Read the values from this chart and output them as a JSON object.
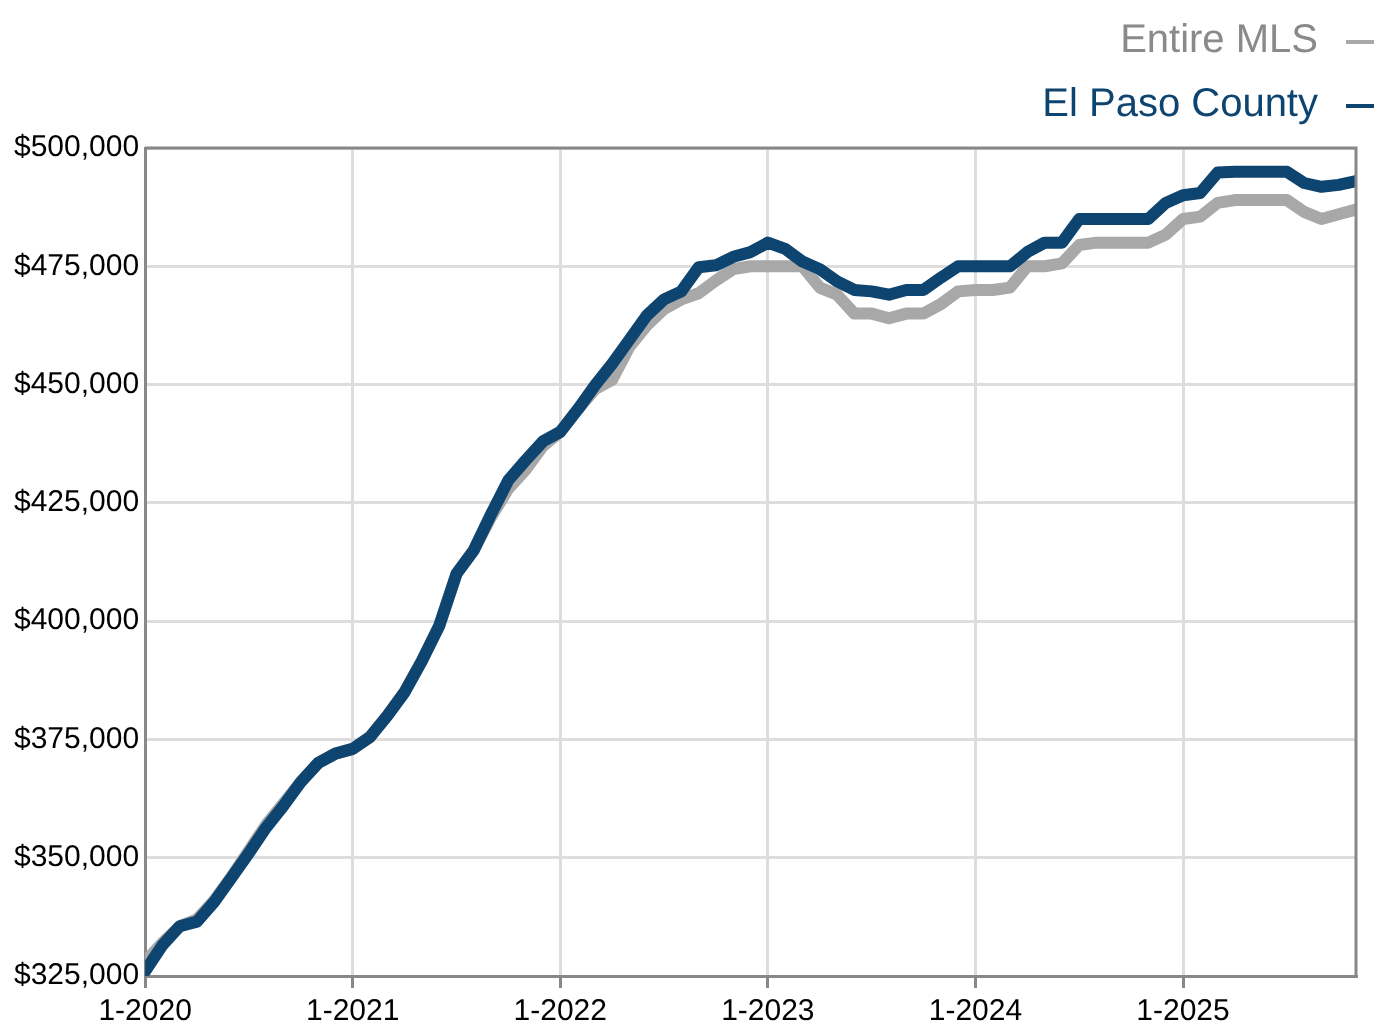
{
  "chart_data": {
    "type": "line",
    "x": [
      "2020-01",
      "2020-02",
      "2020-03",
      "2020-04",
      "2020-05",
      "2020-06",
      "2020-07",
      "2020-08",
      "2020-09",
      "2020-10",
      "2020-11",
      "2020-12",
      "2021-01",
      "2021-02",
      "2021-03",
      "2021-04",
      "2021-05",
      "2021-06",
      "2021-07",
      "2021-08",
      "2021-09",
      "2021-10",
      "2021-11",
      "2021-12",
      "2022-01",
      "2022-02",
      "2022-03",
      "2022-04",
      "2022-05",
      "2022-06",
      "2022-07",
      "2022-08",
      "2022-09",
      "2022-10",
      "2022-11",
      "2022-12",
      "2023-01",
      "2023-02",
      "2023-03",
      "2023-04",
      "2023-05",
      "2023-06",
      "2023-07",
      "2023-08",
      "2023-09",
      "2023-10",
      "2023-11",
      "2023-12",
      "2024-01",
      "2024-02",
      "2024-03",
      "2024-04",
      "2024-05",
      "2024-06",
      "2024-07",
      "2024-08",
      "2024-09",
      "2024-10",
      "2024-11",
      "2024-12",
      "2025-01",
      "2025-02",
      "2025-03",
      "2025-04",
      "2025-05",
      "2025-06",
      "2025-07",
      "2025-08",
      "2025-09",
      "2025-10",
      "2025-11"
    ],
    "series": [
      {
        "name": "Entire MLS",
        "color": "#a8a8a8",
        "values": [
          328000,
          332000,
          335500,
          337000,
          341000,
          346000,
          351500,
          357000,
          361500,
          366000,
          370000,
          372000,
          373000,
          375500,
          380000,
          385000,
          391600,
          399000,
          410000,
          415000,
          422000,
          428000,
          432000,
          437000,
          440000,
          444700,
          449000,
          451000,
          458000,
          462500,
          466000,
          468000,
          469300,
          472000,
          474400,
          475000,
          475000,
          475000,
          475000,
          470500,
          469000,
          465000,
          465000,
          464000,
          465000,
          465000,
          467000,
          469700,
          470000,
          470000,
          470500,
          475000,
          475000,
          475600,
          479500,
          480000,
          480000,
          480000,
          480000,
          481700,
          485000,
          485500,
          488400,
          489000,
          489000,
          489000,
          489000,
          486500,
          485000,
          486000,
          487000
        ]
      },
      {
        "name": "El Paso County",
        "color": "#0e4470",
        "values": [
          326000,
          331500,
          335500,
          336500,
          340700,
          345800,
          351000,
          356400,
          361000,
          366000,
          370000,
          372000,
          373000,
          375500,
          380000,
          385000,
          391600,
          399000,
          410000,
          415000,
          422600,
          429800,
          434000,
          438000,
          440000,
          444700,
          449800,
          454400,
          459500,
          464600,
          468000,
          469700,
          474800,
          475200,
          477000,
          478000,
          480000,
          478700,
          476000,
          474400,
          471800,
          470000,
          469700,
          469000,
          470000,
          470000,
          472600,
          475000,
          475000,
          475000,
          475000,
          478000,
          480000,
          480000,
          485000,
          485000,
          485000,
          485000,
          485000,
          488400,
          490000,
          490500,
          494800,
          495000,
          495000,
          495000,
          495000,
          492600,
          491800,
          492200,
          493000
        ]
      }
    ],
    "xlim": [
      "2020-01",
      "2025-11"
    ],
    "xticks": [
      {
        "value": "2020-01",
        "label": "1-2020"
      },
      {
        "value": "2021-01",
        "label": "1-2021"
      },
      {
        "value": "2022-01",
        "label": "1-2022"
      },
      {
        "value": "2023-01",
        "label": "1-2023"
      },
      {
        "value": "2024-01",
        "label": "1-2024"
      },
      {
        "value": "2025-01",
        "label": "1-2025"
      }
    ],
    "ylim": [
      325000,
      500000
    ],
    "yticks": [
      {
        "value": 325000,
        "label": "$325,000"
      },
      {
        "value": 350000,
        "label": "$350,000"
      },
      {
        "value": 375000,
        "label": "$375,000"
      },
      {
        "value": 400000,
        "label": "$400,000"
      },
      {
        "value": 425000,
        "label": "$425,000"
      },
      {
        "value": 450000,
        "label": "$450,000"
      },
      {
        "value": 475000,
        "label": "$475,000"
      },
      {
        "value": 500000,
        "label": "$500,000"
      }
    ],
    "grid": true,
    "legend": "top right",
    "marker": "none",
    "line_style": "solid"
  }
}
